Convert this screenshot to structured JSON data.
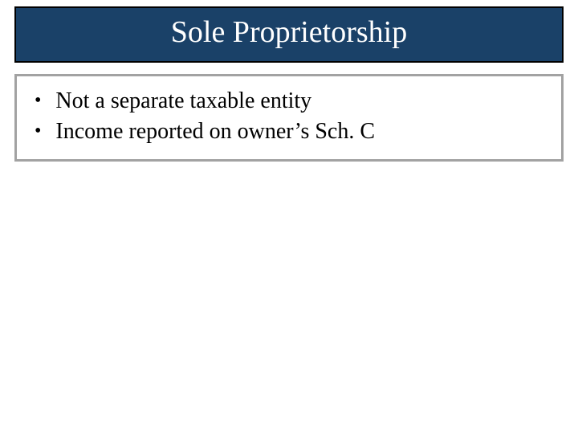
{
  "slide": {
    "title": "Sole Proprietorship",
    "title_fontsize": 38,
    "title_color": "#ffffff",
    "title_box_bg": "#1a4168",
    "title_box_border": "#000000",
    "content_box_border": "#a2a2a2",
    "bullets": [
      "Not a separate taxable entity",
      "Income reported on owner’s Sch. C"
    ],
    "bullet_fontsize": 28,
    "bullet_color": "#000000",
    "background": "#ffffff"
  }
}
